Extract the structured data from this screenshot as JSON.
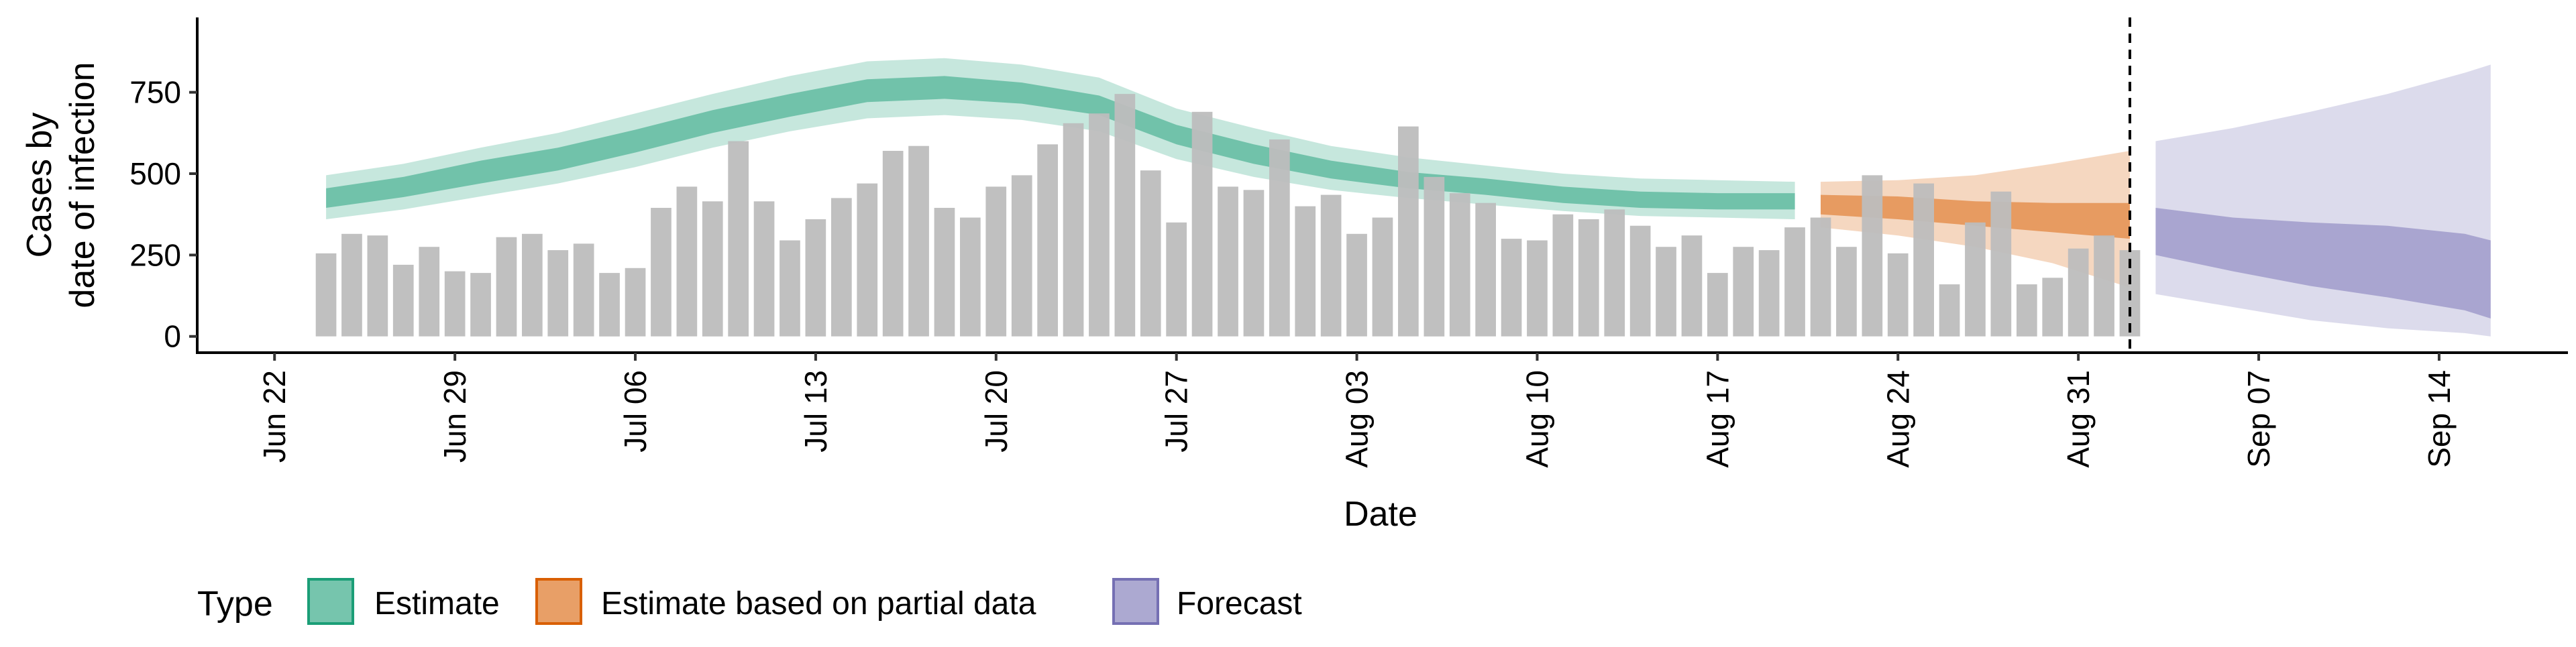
{
  "chart_data": {
    "type": "bar",
    "xlabel": "Date",
    "ylabel_lines": [
      "Cases by",
      "date of infection"
    ],
    "ylim": [
      -50,
      980
    ],
    "yticks": [
      0,
      250,
      500,
      750
    ],
    "ytick_labels": [
      "0",
      "250",
      "500",
      "750"
    ],
    "x_start": "2020-06-19",
    "x_end": "2020-09-19",
    "xticks": [
      {
        "date": "2020-06-22",
        "label": "Jun 22"
      },
      {
        "date": "2020-06-29",
        "label": "Jun 29"
      },
      {
        "date": "2020-07-06",
        "label": "Jul 06"
      },
      {
        "date": "2020-07-13",
        "label": "Jul 13"
      },
      {
        "date": "2020-07-20",
        "label": "Jul 20"
      },
      {
        "date": "2020-07-27",
        "label": "Jul 27"
      },
      {
        "date": "2020-08-03",
        "label": "Aug 03"
      },
      {
        "date": "2020-08-10",
        "label": "Aug 10"
      },
      {
        "date": "2020-08-17",
        "label": "Aug 17"
      },
      {
        "date": "2020-08-24",
        "label": "Aug 24"
      },
      {
        "date": "2020-08-31",
        "label": "Aug 31"
      },
      {
        "date": "2020-09-07",
        "label": "Sep 07"
      },
      {
        "date": "2020-09-14",
        "label": "Sep 14"
      }
    ],
    "bars_start": "2020-06-24",
    "bar_values": [
      255,
      315,
      310,
      220,
      275,
      200,
      195,
      305,
      315,
      265,
      285,
      195,
      210,
      395,
      460,
      415,
      600,
      415,
      295,
      360,
      425,
      470,
      570,
      585,
      395,
      365,
      460,
      495,
      590,
      655,
      685,
      745,
      510,
      350,
      690,
      460,
      450,
      605,
      400,
      435,
      315,
      365,
      645,
      490,
      440,
      410,
      300,
      295,
      375,
      360,
      390,
      340,
      275,
      310,
      195,
      275,
      265,
      335,
      365,
      275,
      495,
      255,
      470,
      160,
      350,
      445,
      160,
      180,
      270,
      310,
      265
    ],
    "vline_date": "2020-09-02",
    "series": [
      {
        "name": "Estimate",
        "color": "#1B9E77",
        "x": [
          "2020-06-24",
          "2020-06-27",
          "2020-06-30",
          "2020-07-03",
          "2020-07-06",
          "2020-07-09",
          "2020-07-12",
          "2020-07-15",
          "2020-07-18",
          "2020-07-21",
          "2020-07-24",
          "2020-07-27",
          "2020-07-30",
          "2020-08-02",
          "2020-08-05",
          "2020-08-08",
          "2020-08-11",
          "2020-08-14",
          "2020-08-17",
          "2020-08-20"
        ],
        "median": [
          425,
          460,
          505,
          545,
          600,
          660,
          710,
          755,
          765,
          745,
          710,
          620,
          560,
          510,
          480,
          460,
          435,
          420,
          415,
          415
        ],
        "inner_lower": [
          395,
          428,
          470,
          510,
          565,
          625,
          675,
          720,
          730,
          715,
          680,
          590,
          530,
          485,
          455,
          435,
          410,
          395,
          390,
          390
        ],
        "inner_upper": [
          455,
          490,
          540,
          580,
          635,
          695,
          745,
          790,
          800,
          780,
          740,
          650,
          590,
          540,
          505,
          485,
          460,
          445,
          440,
          440
        ],
        "outer_lower": [
          360,
          390,
          430,
          470,
          520,
          580,
          630,
          670,
          680,
          665,
          630,
          545,
          490,
          450,
          425,
          405,
          385,
          370,
          365,
          360
        ],
        "outer_upper": [
          495,
          530,
          580,
          625,
          685,
          745,
          800,
          845,
          855,
          835,
          795,
          700,
          640,
          585,
          550,
          525,
          500,
          485,
          480,
          475
        ]
      },
      {
        "name": "Estimate based on partial data",
        "color": "#D95F02",
        "x": [
          "2020-08-21",
          "2020-08-24",
          "2020-08-27",
          "2020-08-30",
          "2020-09-02"
        ],
        "median": [
          405,
          395,
          380,
          370,
          360
        ],
        "inner_lower": [
          375,
          360,
          340,
          320,
          300
        ],
        "inner_upper": [
          435,
          430,
          415,
          410,
          410
        ],
        "outer_lower": [
          335,
          310,
          275,
          225,
          150
        ],
        "outer_upper": [
          475,
          480,
          495,
          530,
          570
        ]
      },
      {
        "name": "Forecast",
        "color": "#7570B3",
        "x": [
          "2020-09-03",
          "2020-09-06",
          "2020-09-09",
          "2020-09-12",
          "2020-09-15",
          "2020-09-16"
        ],
        "median": [
          320,
          280,
          245,
          220,
          190,
          175
        ],
        "inner_lower": [
          250,
          200,
          155,
          120,
          80,
          55
        ],
        "inner_upper": [
          395,
          365,
          350,
          340,
          315,
          295
        ],
        "outer_lower": [
          130,
          90,
          50,
          25,
          10,
          0
        ],
        "outer_upper": [
          600,
          640,
          690,
          745,
          810,
          835
        ]
      }
    ],
    "legend": {
      "title": "Type",
      "position": "bottom",
      "entries": [
        "Estimate",
        "Estimate based on partial data",
        "Forecast"
      ]
    },
    "grid": false,
    "colors": {
      "bars": "#BDBDBD",
      "axis": "#000000"
    }
  }
}
